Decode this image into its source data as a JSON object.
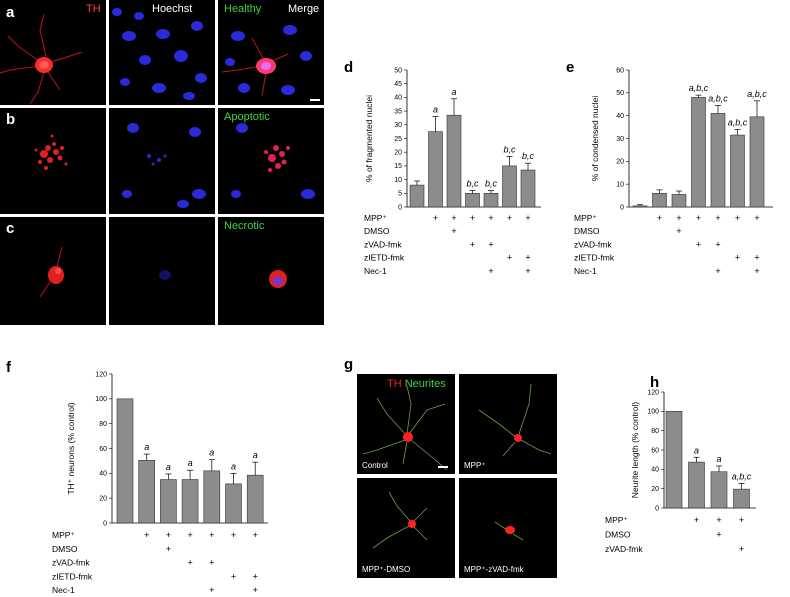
{
  "colors": {
    "red": "#e02020",
    "green": "#3fd23f",
    "nucleus": "#2a2ae0",
    "bar": "#8c8c8c"
  },
  "panel_a": {
    "letter": "a",
    "col_th": "TH",
    "col_hoechst": "Hoechst",
    "col_healthy": "Healthy",
    "col_merge": "Merge"
  },
  "panel_b": {
    "letter": "b",
    "state": "Apoptotic"
  },
  "panel_c": {
    "letter": "c",
    "state": "Necrotic"
  },
  "panel_g": {
    "letter": "g",
    "legend_th": "TH",
    "legend_neurites": "Neurites",
    "labels": [
      "Control",
      "MPP⁺",
      "MPP⁺-DMSO",
      "MPP⁺-zVAD-fmk"
    ]
  },
  "chart_data": [
    {
      "id": "d",
      "letter": "d",
      "type": "bar",
      "ylabel": "% of fragmented nuclei",
      "ylim": [
        0,
        50
      ],
      "yticks": [
        "0",
        "5",
        "10",
        "15",
        "20",
        "25",
        "30",
        "35",
        "40",
        "45",
        "50"
      ],
      "values": [
        8,
        27.5,
        33.5,
        5,
        5,
        15,
        13.5
      ],
      "errors": [
        1.5,
        5.5,
        6,
        1,
        1,
        3.5,
        2.5
      ],
      "annotations": [
        "",
        "a",
        "a",
        "b,c",
        "b,c",
        "b,c",
        "b,c"
      ],
      "rows": [
        {
          "label": "MPP⁺",
          "marks": [
            0,
            1,
            1,
            1,
            1,
            1,
            1
          ]
        },
        {
          "label": "DMSO",
          "marks": [
            0,
            0,
            1,
            0,
            0,
            0,
            0
          ]
        },
        {
          "label": "zVAD-fmk",
          "marks": [
            0,
            0,
            0,
            1,
            1,
            0,
            0
          ]
        },
        {
          "label": "zIETD-fmk",
          "marks": [
            0,
            0,
            0,
            0,
            0,
            1,
            1
          ]
        },
        {
          "label": "Nec-1",
          "marks": [
            0,
            0,
            0,
            0,
            1,
            0,
            1
          ]
        }
      ]
    },
    {
      "id": "e",
      "letter": "e",
      "type": "bar",
      "ylabel": "% of condensed nuclei",
      "ylim": [
        0,
        60
      ],
      "yticks": [
        "0",
        "10",
        "20",
        "30",
        "40",
        "50",
        "60"
      ],
      "values": [
        0.5,
        6,
        5.5,
        48,
        41,
        31.5,
        39.5
      ],
      "errors": [
        0.5,
        1.5,
        1.5,
        1,
        3.5,
        2.5,
        7
      ],
      "annotations": [
        "",
        "",
        "",
        "a,b,c",
        "a,b,c",
        "a,b,c",
        "a,b,c"
      ],
      "rows": [
        {
          "label": "MPP⁺",
          "marks": [
            0,
            1,
            1,
            1,
            1,
            1,
            1
          ]
        },
        {
          "label": "DMSO",
          "marks": [
            0,
            0,
            1,
            0,
            0,
            0,
            0
          ]
        },
        {
          "label": "zVAD-fmk",
          "marks": [
            0,
            0,
            0,
            1,
            1,
            0,
            0
          ]
        },
        {
          "label": "zIETD-fmk",
          "marks": [
            0,
            0,
            0,
            0,
            0,
            1,
            1
          ]
        },
        {
          "label": "Nec-1",
          "marks": [
            0,
            0,
            0,
            0,
            1,
            0,
            1
          ]
        }
      ]
    },
    {
      "id": "f",
      "letter": "f",
      "type": "bar",
      "ylabel": "TH⁺ neurons (% control)",
      "ylim": [
        0,
        120
      ],
      "yticks": [
        "0",
        "20",
        "40",
        "60",
        "80",
        "100",
        "120"
      ],
      "values": [
        100,
        50.5,
        35,
        35,
        42,
        31.5,
        38.5
      ],
      "errors": [
        0,
        5,
        4.5,
        7.5,
        9,
        8.5,
        10.5
      ],
      "annotations": [
        "",
        "a",
        "a",
        "a",
        "a",
        "a",
        "a"
      ],
      "rows": [
        {
          "label": "MPP⁺",
          "marks": [
            0,
            1,
            1,
            1,
            1,
            1,
            1
          ]
        },
        {
          "label": "DMSO",
          "marks": [
            0,
            0,
            1,
            0,
            0,
            0,
            0
          ]
        },
        {
          "label": "zVAD-fmk",
          "marks": [
            0,
            0,
            0,
            1,
            1,
            0,
            0
          ]
        },
        {
          "label": "zIETD-fmk",
          "marks": [
            0,
            0,
            0,
            0,
            0,
            1,
            1
          ]
        },
        {
          "label": "Nec-1",
          "marks": [
            0,
            0,
            0,
            0,
            1,
            0,
            1
          ]
        }
      ]
    },
    {
      "id": "h",
      "letter": "h",
      "type": "bar",
      "ylabel": "Neurite length (% control)",
      "ylim": [
        0,
        120
      ],
      "yticks": [
        "0",
        "20",
        "40",
        "60",
        "80",
        "100",
        "120"
      ],
      "values": [
        100,
        47.5,
        37.5,
        19.5
      ],
      "errors": [
        0,
        5,
        6,
        6
      ],
      "annotations": [
        "",
        "a",
        "a",
        "a,b,c"
      ],
      "rows": [
        {
          "label": "MPP⁺",
          "marks": [
            0,
            1,
            1,
            1
          ]
        },
        {
          "label": "DMSO",
          "marks": [
            0,
            0,
            1,
            0
          ]
        },
        {
          "label": "zVAD-fmk",
          "marks": [
            0,
            0,
            0,
            1
          ]
        }
      ]
    }
  ]
}
